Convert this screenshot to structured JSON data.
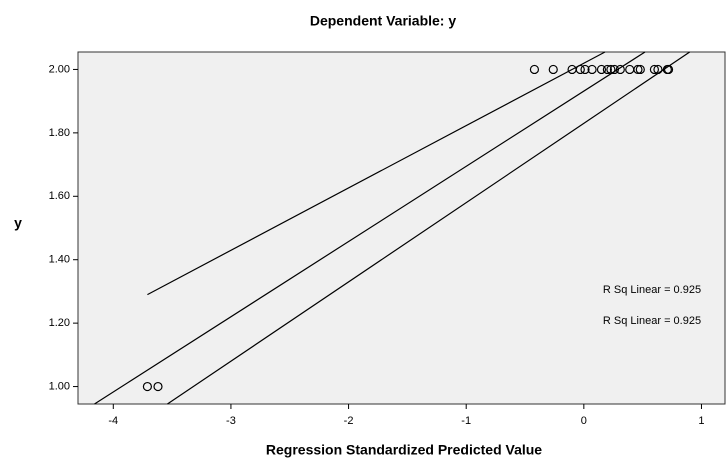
{
  "chart_data": {
    "type": "scatter",
    "title": "Dependent Variable: y",
    "x_label": "Regression Standardized Predicted Value",
    "y_label": "y",
    "x": [
      -3.71,
      -3.62,
      -0.42,
      -0.26,
      -0.1,
      -0.03,
      0.01,
      0.07,
      0.15,
      0.2,
      0.23,
      0.26,
      0.31,
      0.39,
      0.46,
      0.48,
      0.6,
      0.63,
      0.71,
      0.72
    ],
    "y": [
      1,
      1,
      2,
      2,
      2,
      2,
      2,
      2,
      2,
      2,
      2,
      2,
      2,
      2,
      2,
      2,
      2,
      2,
      2,
      2
    ],
    "lines": [
      {
        "x": [
          -3.71,
          0.18
        ],
        "y": [
          1.29,
          2.055
        ]
      },
      {
        "x": [
          -4.16,
          0.52
        ],
        "y": [
          0.945,
          2.055
        ]
      },
      {
        "x": [
          -3.54,
          0.9
        ],
        "y": [
          0.945,
          2.055
        ]
      }
    ],
    "annotations": [
      "R Sq Linear = 0.925",
      "R Sq Linear = 0.925"
    ],
    "xlim": [
      -4.3,
      1.2
    ],
    "ylim": [
      0.945,
      2.055
    ],
    "xticks": [
      -4,
      -3,
      -2,
      -1,
      0,
      1
    ],
    "yticks": [
      {
        "value": 1,
        "label": "1.00"
      },
      {
        "value": 1.2,
        "label": "1.20"
      },
      {
        "value": 1.4,
        "label": "1.40"
      },
      {
        "value": 1.6,
        "label": "1.60"
      },
      {
        "value": 1.8,
        "label": "1.80"
      },
      {
        "value": 2,
        "label": "2.00"
      }
    ]
  }
}
